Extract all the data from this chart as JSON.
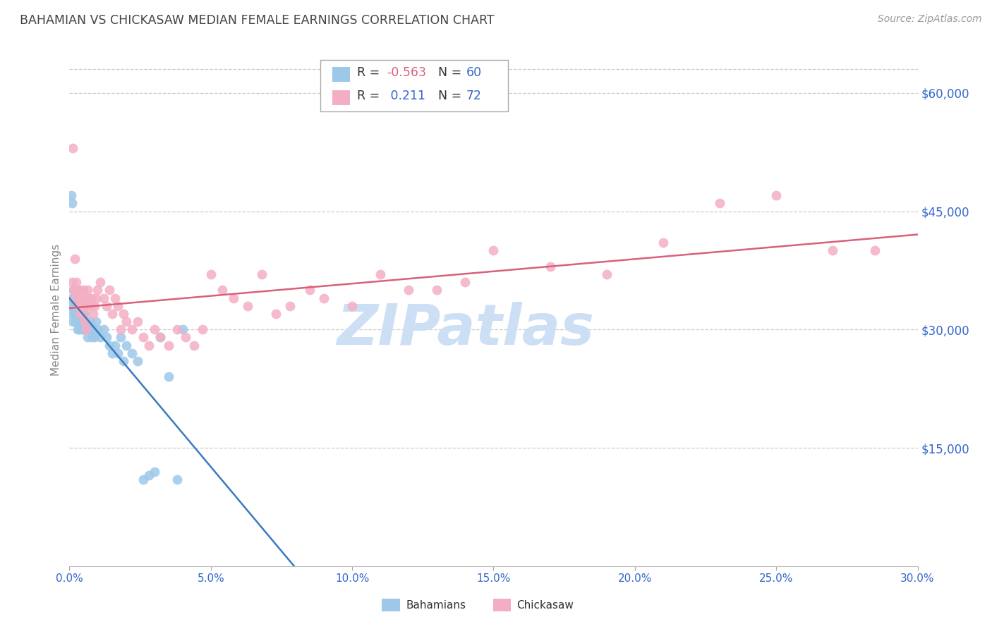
{
  "title": "BAHAMIAN VS CHICKASAW MEDIAN FEMALE EARNINGS CORRELATION CHART",
  "source": "Source: ZipAtlas.com",
  "blue_color": "#9ec8e8",
  "pink_color": "#f4aec4",
  "blue_line_color": "#3a7abf",
  "pink_line_color": "#d9607a",
  "axis_label_color": "#3366cc",
  "title_color": "#444444",
  "watermark_color": "#cddff5",
  "legend_label1": "Bahamians",
  "legend_label2": "Chickasaw",
  "blue_r": -0.563,
  "blue_n": 60,
  "pink_r": 0.211,
  "pink_n": 72,
  "ylabel_vals": [
    15000,
    30000,
    45000,
    60000
  ],
  "ylabel_labels": [
    "$15,000",
    "$30,000",
    "$45,000",
    "$60,000"
  ],
  "xlabel_vals": [
    0.0,
    5.0,
    10.0,
    15.0,
    20.0,
    25.0,
    30.0
  ],
  "xlim": [
    0.0,
    30.0
  ],
  "ylim": [
    0,
    65000
  ],
  "blue_x": [
    0.05,
    0.08,
    0.1,
    0.12,
    0.15,
    0.18,
    0.2,
    0.22,
    0.25,
    0.28,
    0.3,
    0.33,
    0.35,
    0.38,
    0.4,
    0.43,
    0.45,
    0.48,
    0.5,
    0.53,
    0.55,
    0.58,
    0.6,
    0.65,
    0.7,
    0.75,
    0.8,
    0.85,
    0.9,
    0.95,
    1.0,
    1.1,
    1.2,
    1.3,
    1.4,
    1.5,
    1.6,
    1.7,
    1.8,
    1.9,
    2.0,
    2.2,
    2.4,
    2.6,
    2.8,
    3.0,
    3.2,
    3.5,
    3.8,
    4.0,
    0.06,
    0.09,
    0.13,
    0.16,
    0.21,
    0.26,
    0.31,
    0.36,
    0.41,
    0.46
  ],
  "blue_y": [
    33000,
    32000,
    34000,
    31000,
    35000,
    32000,
    33000,
    31000,
    32000,
    30000,
    33000,
    32000,
    30000,
    31000,
    33000,
    31000,
    30000,
    32000,
    31000,
    30000,
    32000,
    31000,
    30000,
    29000,
    30000,
    31000,
    29000,
    30000,
    29000,
    31000,
    30000,
    29000,
    30000,
    29000,
    28000,
    27000,
    28000,
    27000,
    29000,
    26000,
    28000,
    27000,
    26000,
    11000,
    11500,
    12000,
    29000,
    24000,
    11000,
    30000,
    47000,
    46000,
    34000,
    33000,
    32000,
    35000,
    33000,
    31000,
    32000,
    30000
  ],
  "pink_x": [
    0.1,
    0.15,
    0.2,
    0.25,
    0.3,
    0.35,
    0.4,
    0.45,
    0.5,
    0.55,
    0.6,
    0.65,
    0.7,
    0.75,
    0.8,
    0.85,
    0.9,
    0.95,
    1.0,
    1.1,
    1.2,
    1.3,
    1.4,
    1.5,
    1.6,
    1.7,
    1.8,
    1.9,
    2.0,
    2.2,
    2.4,
    2.6,
    2.8,
    3.0,
    3.2,
    3.5,
    3.8,
    4.1,
    4.4,
    4.7,
    5.0,
    5.4,
    5.8,
    6.3,
    6.8,
    7.3,
    7.8,
    8.5,
    9.0,
    10.0,
    11.0,
    12.0,
    13.0,
    14.0,
    15.0,
    17.0,
    19.0,
    21.0,
    23.0,
    25.0,
    27.0,
    28.5,
    0.12,
    0.18,
    0.23,
    0.28,
    0.33,
    0.38,
    0.43,
    0.48,
    0.53,
    0.58
  ],
  "pink_y": [
    36000,
    35000,
    34000,
    35000,
    33000,
    35000,
    34000,
    33000,
    35000,
    34000,
    33000,
    35000,
    34000,
    33000,
    34000,
    32000,
    33000,
    34000,
    35000,
    36000,
    34000,
    33000,
    35000,
    32000,
    34000,
    33000,
    30000,
    32000,
    31000,
    30000,
    31000,
    29000,
    28000,
    30000,
    29000,
    28000,
    30000,
    29000,
    28000,
    30000,
    37000,
    35000,
    34000,
    33000,
    37000,
    32000,
    33000,
    35000,
    34000,
    33000,
    37000,
    35000,
    35000,
    36000,
    40000,
    38000,
    37000,
    41000,
    46000,
    47000,
    40000,
    40000,
    53000,
    39000,
    36000,
    35000,
    33000,
    32000,
    33000,
    32000,
    31000,
    30000
  ]
}
